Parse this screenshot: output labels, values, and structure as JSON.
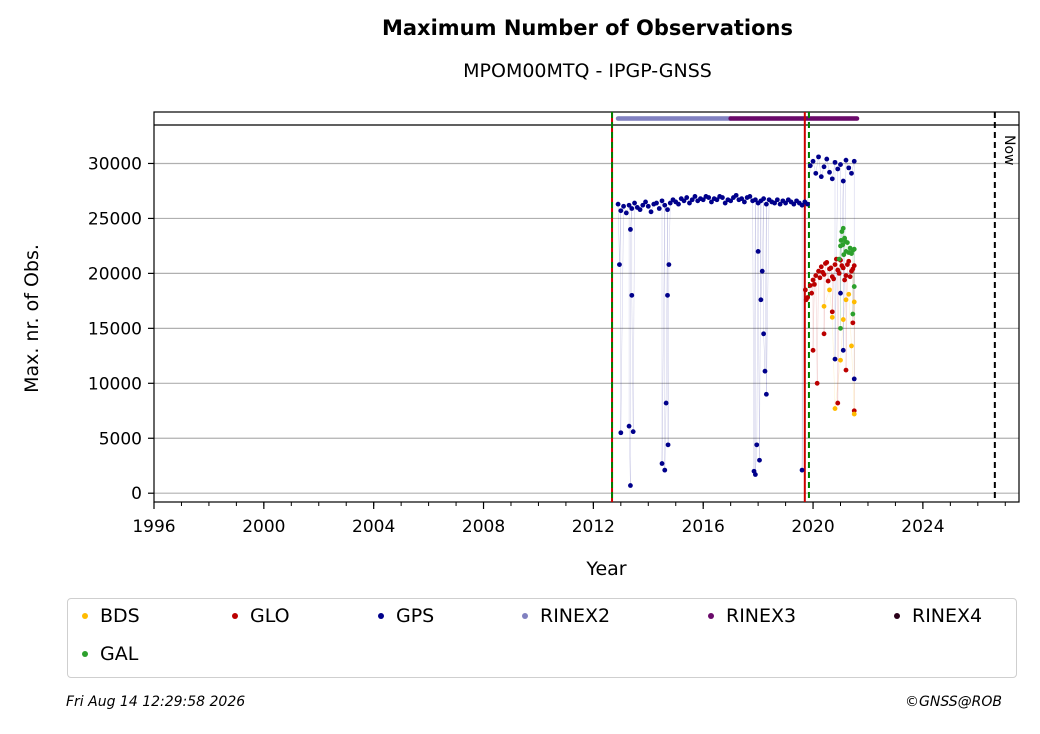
{
  "header": {
    "title": "Maximum Number of Observations",
    "subtitle": "MPOM00MTQ - IPGP-GNSS"
  },
  "footer": {
    "date": "Fri Aug 14 12:29:58 2026",
    "copyright": "©GNSS@ROB"
  },
  "chart_data": {
    "type": "scatter",
    "xlabel": "Year",
    "ylabel": "Max. nr. of Obs.",
    "xlim": [
      1996,
      2027.5
    ],
    "ylim": [
      -800,
      33500
    ],
    "xticks": [
      1996,
      2000,
      2004,
      2008,
      2012,
      2016,
      2020,
      2024
    ],
    "xtick_labels": [
      "1996",
      "2000",
      "2004",
      "2008",
      "2012",
      "2016",
      "2020",
      "2024"
    ],
    "yticks": [
      0,
      5000,
      10000,
      15000,
      20000,
      25000,
      30000
    ],
    "ytick_labels": [
      "0",
      "5000",
      "10000",
      "15000",
      "20000",
      "25000",
      "30000"
    ],
    "grid": "horizontal",
    "vlines": [
      {
        "x": 2012.68,
        "color": "#cc0000",
        "style": "solid"
      },
      {
        "x": 2012.68,
        "color": "#008000",
        "style": "dashed"
      },
      {
        "x": 2019.7,
        "color": "#cc0000",
        "style": "solid"
      },
      {
        "x": 2019.85,
        "color": "#008000",
        "style": "dashed"
      },
      {
        "x": 2026.62,
        "color": "#000000",
        "style": "dashed",
        "label": "Now"
      }
    ],
    "now_label": "Now",
    "rinex_bands": [
      {
        "name": "RINEX2",
        "start": 2012.9,
        "end": 2017.0,
        "color": "#8080c0"
      },
      {
        "name": "RINEX3",
        "start": 2017.0,
        "end": 2021.6,
        "color": "#6a0a6a"
      }
    ],
    "series": [
      {
        "name": "GPS",
        "color": "#00008b",
        "x": [
          2012.9,
          2013.0,
          2013.1,
          2013.2,
          2013.3,
          2013.4,
          2013.5,
          2013.6,
          2013.7,
          2013.8,
          2013.9,
          2014.0,
          2014.1,
          2014.2,
          2014.3,
          2014.4,
          2014.5,
          2014.6,
          2014.7,
          2014.8,
          2014.9,
          2015.0,
          2015.1,
          2015.2,
          2015.3,
          2015.4,
          2015.5,
          2015.6,
          2015.7,
          2015.8,
          2015.9,
          2016.0,
          2016.1,
          2016.2,
          2016.3,
          2016.4,
          2016.5,
          2016.6,
          2016.7,
          2016.8,
          2016.9,
          2017.0,
          2017.1,
          2017.2,
          2017.3,
          2017.4,
          2017.5,
          2017.6,
          2017.7,
          2017.8,
          2017.9,
          2018.0,
          2018.1,
          2018.2,
          2018.3,
          2018.4,
          2018.5,
          2018.6,
          2018.7,
          2018.8,
          2018.9,
          2019.0,
          2019.1,
          2019.2,
          2019.3,
          2019.4,
          2019.5,
          2019.6,
          2019.7,
          2019.8,
          2019.9,
          2020.0,
          2020.1,
          2020.2,
          2020.3,
          2020.4,
          2020.5,
          2020.6,
          2020.7,
          2020.8,
          2020.9,
          2021.0,
          2021.1,
          2021.2,
          2021.3,
          2021.4,
          2021.5,
          2012.95,
          2013.3,
          2013.4,
          2013.45,
          2013.35,
          2014.5,
          2014.6,
          2014.65,
          2014.7,
          2014.72,
          2017.85,
          2017.9,
          2017.95,
          2018.0,
          2018.1,
          2018.15,
          2018.2,
          2018.25,
          2018.3,
          2019.6,
          2013.0,
          2013.35,
          2014.75,
          2018.05,
          2020.8,
          2021.0,
          2021.1,
          2021.5
        ],
        "y": [
          26300,
          25700,
          26100,
          25500,
          26200,
          25900,
          26400,
          26000,
          25800,
          26200,
          26500,
          26100,
          25600,
          26300,
          26400,
          25900,
          26600,
          26200,
          25800,
          26400,
          26700,
          26500,
          26300,
          26800,
          26600,
          26900,
          26400,
          26700,
          27000,
          26600,
          26800,
          26700,
          27000,
          26900,
          26500,
          26800,
          26700,
          27000,
          26900,
          26400,
          26700,
          26600,
          26900,
          27100,
          26700,
          26800,
          26500,
          26900,
          27000,
          26600,
          26700,
          26400,
          26600,
          26800,
          26300,
          26700,
          26500,
          26400,
          26700,
          26300,
          26600,
          26400,
          26700,
          26500,
          26300,
          26600,
          26400,
          26200,
          26500,
          26300,
          29800,
          30200,
          29100,
          30600,
          28800,
          29700,
          30400,
          29200,
          28600,
          30100,
          29500,
          29900,
          28400,
          30300,
          29600,
          29100,
          30200,
          20800,
          6100,
          18000,
          5600,
          700,
          2700,
          2100,
          8200,
          18000,
          4400,
          2000,
          1700,
          4400,
          22000,
          17600,
          20200,
          14500,
          11100,
          9000,
          2100,
          5500,
          24000,
          20800,
          3000,
          12200,
          18200,
          13000,
          10400
        ]
      },
      {
        "name": "GLO",
        "color": "#bb0000",
        "x": [
          2019.72,
          2019.8,
          2019.9,
          2020.0,
          2020.1,
          2020.2,
          2020.3,
          2020.4,
          2020.5,
          2020.6,
          2020.7,
          2020.8,
          2020.9,
          2021.0,
          2021.1,
          2021.2,
          2021.3,
          2021.4,
          2021.5,
          2019.75,
          2019.95,
          2020.05,
          2020.25,
          2020.35,
          2020.45,
          2020.55,
          2020.65,
          2020.75,
          2020.85,
          2020.95,
          2021.05,
          2021.15,
          2021.25,
          2021.35,
          2021.45,
          2020.0,
          2020.15,
          2020.7,
          2020.9,
          2021.2,
          2021.45,
          2021.5,
          2020.4
        ],
        "y": [
          18500,
          17800,
          18900,
          19400,
          19800,
          20200,
          20600,
          19900,
          21000,
          20400,
          19700,
          20800,
          20300,
          21200,
          20500,
          19800,
          21100,
          20200,
          20700,
          17600,
          18200,
          19000,
          19600,
          20100,
          20900,
          19300,
          20500,
          19500,
          21300,
          20000,
          20700,
          19400,
          20800,
          19700,
          20400,
          13000,
          10000,
          16500,
          8200,
          11200,
          15500,
          7500,
          14500
        ]
      },
      {
        "name": "GAL",
        "color": "#2ca02c",
        "x": [
          2021.0,
          2021.05,
          2021.1,
          2021.15,
          2021.2,
          2021.25,
          2021.3,
          2021.35,
          2021.4,
          2021.45,
          2021.5,
          2020.95,
          2021.02,
          2021.08,
          2021.12,
          2021.18,
          2021.5,
          2021.45,
          2021.0
        ],
        "y": [
          22500,
          23800,
          24100,
          23200,
          22000,
          22800,
          21900,
          22300,
          21800,
          22100,
          22200,
          21300,
          23000,
          22600,
          21700,
          22900,
          18800,
          16300,
          15000
        ]
      },
      {
        "name": "BDS",
        "color": "#ffbb00",
        "x": [
          2020.4,
          2020.6,
          2020.8,
          2021.0,
          2021.1,
          2021.2,
          2021.4,
          2021.5,
          2021.5,
          2020.7,
          2021.3
        ],
        "y": [
          17000,
          18500,
          7700,
          12100,
          15800,
          17600,
          13400,
          7200,
          17400,
          16000,
          18100
        ]
      }
    ],
    "legend": {
      "placement": "below",
      "entries": [
        {
          "label": "BDS",
          "color": "#ffbb00"
        },
        {
          "label": "GLO",
          "color": "#bb0000"
        },
        {
          "label": "GPS",
          "color": "#00008b"
        },
        {
          "label": "RINEX2",
          "color": "#8080c0"
        },
        {
          "label": "RINEX3",
          "color": "#6a0a6a"
        },
        {
          "label": "RINEX4",
          "color": "#2a0018"
        },
        {
          "label": "GAL",
          "color": "#2ca02c"
        }
      ]
    }
  }
}
